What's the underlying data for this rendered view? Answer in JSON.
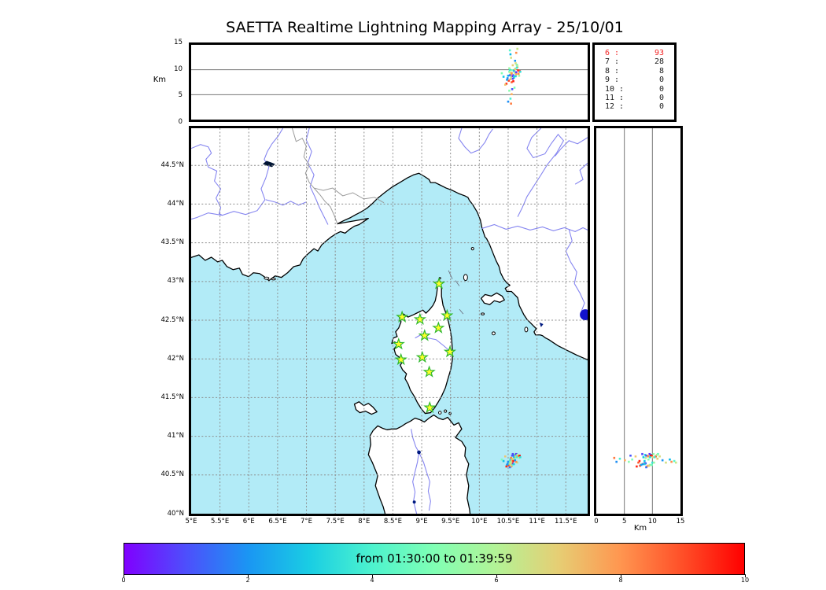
{
  "title": "SAETTA Realtime Lightning Mapping Array - 25/10/01",
  "chart_data": {
    "type": "scatter",
    "title": "SAETTA Realtime Lightning Mapping Array - 25/10/01",
    "panels": {
      "alt_lon": {
        "ylabel": "Km",
        "ylim": [
          0,
          15
        ],
        "yticks": [
          0,
          5,
          10,
          15
        ],
        "xlim": [
          5,
          11.879
        ],
        "grid": "horizontal solid"
      },
      "map": {
        "xlim": [
          5,
          11.879
        ],
        "ylim": [
          40,
          44.98
        ],
        "xtick_values": [
          5,
          5.5,
          6,
          6.5,
          7,
          7.5,
          8,
          8.5,
          9,
          9.5,
          10,
          10.5,
          11,
          11.5
        ],
        "xtick_labels": [
          "5°E",
          "5.5°E",
          "6°E",
          "6.5°E",
          "7°E",
          "7.5°E",
          "8°E",
          "8.5°E",
          "9°E",
          "9.5°E",
          "10°E",
          "10.5°E",
          "11°E",
          "11.5°E"
        ],
        "ytick_values": [
          40,
          40.5,
          41,
          41.5,
          42,
          42.5,
          43,
          43.5,
          44,
          44.5
        ],
        "ytick_labels": [
          "40°N",
          "40.5°N",
          "41°N",
          "41.5°N",
          "42°N",
          "42.5°N",
          "43°N",
          "43.5°N",
          "44°N",
          "44.5°N"
        ],
        "grid": "dashed"
      },
      "alt_lat": {
        "xlabel": "Km",
        "xlim": [
          0,
          15
        ],
        "xticks": [
          0,
          5,
          10,
          15
        ],
        "grid": "vertical solid"
      }
    },
    "station_count_histogram": [
      {
        "stations": 6,
        "count": 93,
        "highlight": true
      },
      {
        "stations": 7,
        "count": 28,
        "highlight": false
      },
      {
        "stations": 8,
        "count": 8,
        "highlight": false
      },
      {
        "stations": 9,
        "count": 0,
        "highlight": false
      },
      {
        "stations": 10,
        "count": 0,
        "highlight": false
      },
      {
        "stations": 11,
        "count": 0,
        "highlight": false
      },
      {
        "stations": 12,
        "count": 0,
        "highlight": false
      }
    ],
    "stations_lonlat": [
      [
        9.3,
        42.97
      ],
      [
        8.66,
        42.54
      ],
      [
        8.97,
        42.51
      ],
      [
        9.44,
        42.56
      ],
      [
        9.29,
        42.4
      ],
      [
        9.05,
        42.3
      ],
      [
        8.6,
        42.19
      ],
      [
        9.49,
        42.09
      ],
      [
        8.64,
        41.99
      ],
      [
        9.01,
        42.02
      ],
      [
        9.13,
        41.83
      ],
      [
        9.14,
        41.37
      ]
    ],
    "sources_fields": [
      "lon_deg_E",
      "lat_deg_N",
      "alt_km",
      "t_minutes_0_10"
    ],
    "sources": [
      [
        10.6,
        40.76,
        9.8,
        2.1
      ],
      [
        10.62,
        40.77,
        10.2,
        5.4
      ],
      [
        10.64,
        40.75,
        9.1,
        7.8
      ],
      [
        10.66,
        40.74,
        10.6,
        8.9
      ],
      [
        10.63,
        40.76,
        8.7,
        3.2
      ],
      [
        10.61,
        40.74,
        9.4,
        6.1
      ],
      [
        10.65,
        40.77,
        11.0,
        4.4
      ],
      [
        10.67,
        40.75,
        9.9,
        9.3
      ],
      [
        10.59,
        40.75,
        8.9,
        1.2
      ],
      [
        10.62,
        40.73,
        10.1,
        7.1
      ],
      [
        10.64,
        40.77,
        9.5,
        0.6
      ],
      [
        10.66,
        40.76,
        10.8,
        5.9
      ],
      [
        10.68,
        40.74,
        9.2,
        8.2
      ],
      [
        10.6,
        40.73,
        8.4,
        2.9
      ],
      [
        10.63,
        40.74,
        11.3,
        6.7
      ],
      [
        10.65,
        40.73,
        10.4,
        3.8
      ],
      [
        10.7,
        40.75,
        9.7,
        9.8
      ],
      [
        10.58,
        40.77,
        8.2,
        0.9
      ],
      [
        10.5,
        40.65,
        8.8,
        2.4
      ],
      [
        10.52,
        40.63,
        9.6,
        5.1
      ],
      [
        10.54,
        40.64,
        8.1,
        7.4
      ],
      [
        10.56,
        40.62,
        9.3,
        8.6
      ],
      [
        10.53,
        40.66,
        10.0,
        3.5
      ],
      [
        10.55,
        40.65,
        8.5,
        6.3
      ],
      [
        10.57,
        40.63,
        9.9,
        4.7
      ],
      [
        10.51,
        40.62,
        7.8,
        9.1
      ],
      [
        10.49,
        40.64,
        8.3,
        1.7
      ],
      [
        10.55,
        40.61,
        9.0,
        7.9
      ],
      [
        10.58,
        40.65,
        8.7,
        0.4
      ],
      [
        10.52,
        40.66,
        10.3,
        5.6
      ],
      [
        10.56,
        40.66,
        7.5,
        8.8
      ],
      [
        10.48,
        40.63,
        8.0,
        2.2
      ],
      [
        10.54,
        40.62,
        9.4,
        6.9
      ],
      [
        10.6,
        40.64,
        8.6,
        3.1
      ],
      [
        10.47,
        40.61,
        7.2,
        9.5
      ],
      [
        10.53,
        40.6,
        8.9,
        1.4
      ],
      [
        10.53,
        40.68,
        13.9,
        4.2
      ],
      [
        10.54,
        40.7,
        13.1,
        2.6
      ],
      [
        10.55,
        40.66,
        12.4,
        6.6
      ],
      [
        10.52,
        40.67,
        5.8,
        5.2
      ],
      [
        10.56,
        40.69,
        5.1,
        7.6
      ],
      [
        10.54,
        40.71,
        4.2,
        3.9
      ],
      [
        10.55,
        40.72,
        3.2,
        8.4
      ],
      [
        10.5,
        40.67,
        3.6,
        1.9
      ],
      [
        10.66,
        40.66,
        14.2,
        6.4
      ],
      [
        10.64,
        40.67,
        13.4,
        8.1
      ],
      [
        10.39,
        40.7,
        9.3,
        5.0
      ],
      [
        10.42,
        40.68,
        8.6,
        2.8
      ],
      [
        10.45,
        40.74,
        7.0,
        7.2
      ],
      [
        10.61,
        40.7,
        6.4,
        4.9
      ],
      [
        10.59,
        40.68,
        7.7,
        9.6
      ],
      [
        10.57,
        40.75,
        6.1,
        1.1
      ],
      [
        10.69,
        40.72,
        8.8,
        5.8
      ],
      [
        10.71,
        40.73,
        9.6,
        3.4
      ],
      [
        10.58,
        40.71,
        10.9,
        7.0
      ],
      [
        10.62,
        40.69,
        11.8,
        2.0
      ]
    ],
    "colorbar": {
      "label": "from 01:30:00 to 01:39:59",
      "ticks": [
        0,
        2,
        4,
        6,
        8,
        10
      ],
      "range": [
        0,
        10
      ],
      "colormap": "rainbow"
    },
    "colors": {
      "sea": "#b2ebf7",
      "land": "#ffffff",
      "coast": "#000000",
      "river": "#8585f0",
      "border_line": "#9a9a9a",
      "lake": "#001a80",
      "lake_bolsena": "#1212cc",
      "station_fill": "#ffff2a",
      "station_edge": "#2eb82e",
      "grid": "#8c8c8c",
      "highlight_red": "#f22424"
    }
  }
}
